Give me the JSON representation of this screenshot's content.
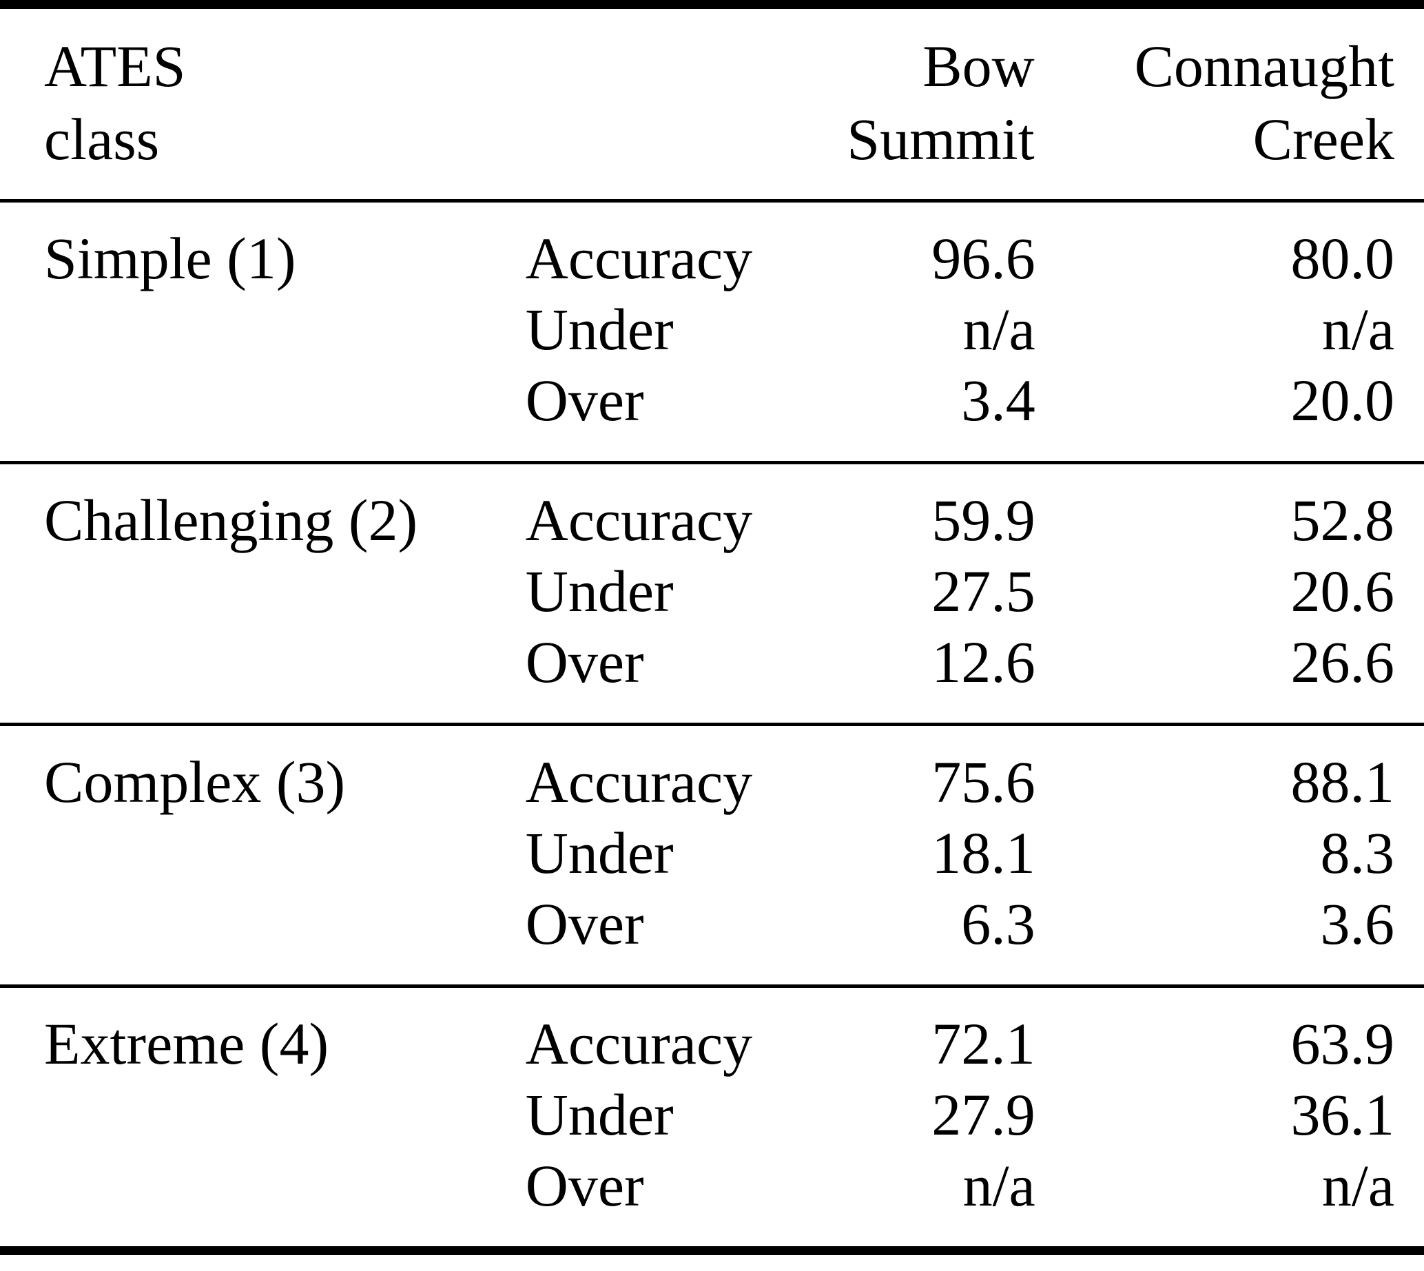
{
  "table": {
    "header": {
      "class_line1": "ATES",
      "class_line2": "class",
      "metric_col": "",
      "site1_line1": "Bow",
      "site1_line2": "Summit",
      "site2_line1": "Connaught",
      "site2_line2": "Creek"
    },
    "groups": [
      {
        "class": "Simple (1)",
        "rows": [
          {
            "metric": "Accuracy",
            "bow_summit": "96.6",
            "connaught_creek": "80.0"
          },
          {
            "metric": "Under",
            "bow_summit": "n/a",
            "connaught_creek": "n/a"
          },
          {
            "metric": "Over",
            "bow_summit": "3.4",
            "connaught_creek": "20.0"
          }
        ]
      },
      {
        "class": "Challenging (2)",
        "rows": [
          {
            "metric": "Accuracy",
            "bow_summit": "59.9",
            "connaught_creek": "52.8"
          },
          {
            "metric": "Under",
            "bow_summit": "27.5",
            "connaught_creek": "20.6"
          },
          {
            "metric": "Over",
            "bow_summit": "12.6",
            "connaught_creek": "26.6"
          }
        ]
      },
      {
        "class": "Complex (3)",
        "rows": [
          {
            "metric": "Accuracy",
            "bow_summit": "75.6",
            "connaught_creek": "88.1"
          },
          {
            "metric": "Under",
            "bow_summit": "18.1",
            "connaught_creek": "8.3"
          },
          {
            "metric": "Over",
            "bow_summit": "6.3",
            "connaught_creek": "3.6"
          }
        ]
      },
      {
        "class": "Extreme (4)",
        "rows": [
          {
            "metric": "Accuracy",
            "bow_summit": "72.1",
            "connaught_creek": "63.9"
          },
          {
            "metric": "Under",
            "bow_summit": "27.9",
            "connaught_creek": "36.1"
          },
          {
            "metric": "Over",
            "bow_summit": "n/a",
            "connaught_creek": "n/a"
          }
        ]
      }
    ],
    "colors": {
      "text": "#000000",
      "background": "#ffffff",
      "rule": "#000000"
    }
  }
}
